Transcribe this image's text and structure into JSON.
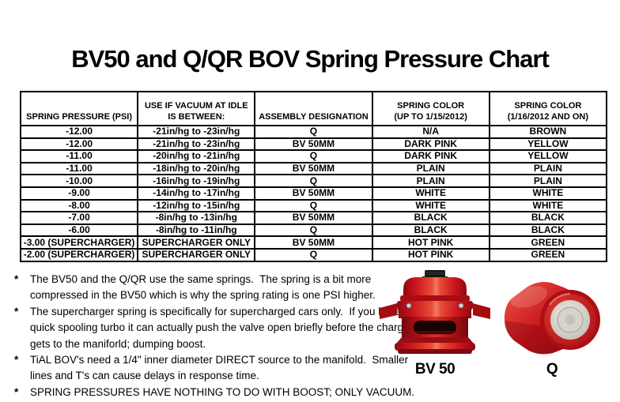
{
  "page": {
    "title": "BV50 and Q/QR BOV Spring Pressure Chart"
  },
  "table": {
    "headers": [
      {
        "lines": [
          "SPRING PRESSURE (PSI)"
        ]
      },
      {
        "lines": [
          "USE IF VACUUM AT IDLE",
          "IS BETWEEN:"
        ]
      },
      {
        "lines": [
          "ASSEMBLY DESIGNATION"
        ]
      },
      {
        "lines": [
          "SPRING COLOR",
          "(UP TO 1/15/2012)"
        ]
      },
      {
        "lines": [
          "SPRING COLOR",
          "(1/16/2012 AND ON)"
        ]
      }
    ],
    "rows": [
      [
        "-12.00",
        "-21in/hg to -23in/hg",
        "Q",
        "N/A",
        "BROWN"
      ],
      [
        "-12.00",
        "-21in/hg to -23in/hg",
        "BV 50MM",
        "DARK PINK",
        "YELLOW"
      ],
      [
        "-11.00",
        "-20in/hg to -21in/hg",
        "Q",
        "DARK PINK",
        "YELLOW"
      ],
      [
        "-11.00",
        "-18in/hg to -20in/hg",
        "BV 50MM",
        "PLAIN",
        "PLAIN"
      ],
      [
        "-10.00",
        "-16in/hg to -19in/hg",
        "Q",
        "PLAIN",
        "PLAIN"
      ],
      [
        "-9.00",
        "-14in/hg to -17in/hg",
        "BV 50MM",
        "WHITE",
        "WHITE"
      ],
      [
        "-8.00",
        "-12in/hg to -15in/hg",
        "Q",
        "WHITE",
        "WHITE"
      ],
      [
        "-7.00",
        "-8in/hg to -13in/hg",
        "BV 50MM",
        "BLACK",
        "BLACK"
      ],
      [
        "-6.00",
        "-8in/hg to -11in/hg",
        "Q",
        "BLACK",
        "BLACK"
      ],
      [
        "-3.00 (SUPERCHARGER)",
        "SUPERCHARGER ONLY",
        "BV 50MM",
        "HOT PINK",
        "GREEN"
      ],
      [
        "-2.00 (SUPERCHARGER)",
        "SUPERCHARGER ONLY",
        "Q",
        "HOT PINK",
        "GREEN"
      ]
    ]
  },
  "footnotes": {
    "marker": "*",
    "items": [
      {
        "lines": [
          "The BV50 and the Q/QR use the same springs.  The spring is a bit more",
          "compressed in the BV50 which is why the spring rating is one PSI higher."
        ]
      },
      {
        "lines": [
          "The supercharger spring is specifically for supercharged cars only.  If you have a",
          "quick spooling turbo it can actually push the valve open briefly before the charge",
          "gets to the maniforld; dumping boost."
        ]
      },
      {
        "lines": [
          "TiAL BOV's need a 1/4\" inner diameter DIRECT source to the manifold.  Smaller",
          "lines and T's can cause delays in response time."
        ]
      },
      {
        "lines": [
          "SPRING PRESSURES HAVE NOTHING TO DO WITH BOOST; ONLY VACUUM."
        ]
      }
    ]
  },
  "products": [
    {
      "label": "BV 50",
      "image": "red-bv50-blow-off-valve-side-view"
    },
    {
      "label": "Q",
      "image": "red-q-blow-off-valve-angled-view"
    }
  ],
  "colors": {
    "background": "#ffffff",
    "text": "#000000",
    "table_border": "#000000",
    "valve_red": "#c8131d",
    "valve_highlight": "#ef6a54",
    "valve_shadow": "#7d0a0e",
    "valve_inner_silver": "#e9e5df"
  }
}
